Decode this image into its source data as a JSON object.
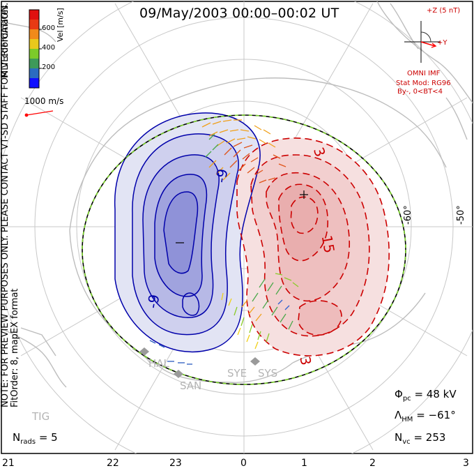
{
  "title": "09/May/2003 00:00–00:02 UT",
  "side_note": {
    "line1": "NOTE: FOR PREVIEW PURPOSES ONLY. PLEASE CONTACT VT-SD STAFF FOR VERIFICATION.",
    "line2": "FitOrder: 8, mapEX format"
  },
  "colorbar": {
    "title": "Vel [m/s]",
    "caption": "MLT coordinates",
    "ticks": [
      "200",
      "400",
      "600"
    ],
    "colors": [
      "#1010ff",
      "#2b6cc0",
      "#3e9a5a",
      "#7ccb2a",
      "#e8c81c",
      "#f08a1a",
      "#e83a14",
      "#e01010"
    ]
  },
  "reference_vector": {
    "label": "1000 m/s",
    "color": "#ff0000"
  },
  "imf": {
    "z_label": "+Z (5 nT)",
    "y_label": "+Y",
    "source": "OMNI IMF",
    "model": "Stat Mod: RG96",
    "condition": "By-, 0<BT<4"
  },
  "contours": {
    "labels": [
      "-9",
      "-9",
      "3",
      "15",
      "3"
    ],
    "negative_color": "#0000aa",
    "positive_color": "#cc0000"
  },
  "markers": {
    "min": "−",
    "max": "+"
  },
  "latitude_labels": [
    "-60°",
    "-50°"
  ],
  "stations": [
    "HAL",
    "SAN",
    "SYE",
    "SYS",
    "TIG"
  ],
  "stats": {
    "phi_symbol": "Φ",
    "phi_sub": "pc",
    "phi_value": "= 48 kV",
    "lambda_symbol": "Λ",
    "lambda_sub": "HM",
    "lambda_value": "= −61°",
    "nvc_symbol": "N",
    "nvc_sub": "vc",
    "nvc_value": "= 253",
    "nrads_symbol": "N",
    "nrads_sub": "rads",
    "nrads_value": "= 5"
  },
  "mlt_ticks": [
    "21",
    "22",
    "23",
    "0",
    "1",
    "2",
    "3"
  ]
}
